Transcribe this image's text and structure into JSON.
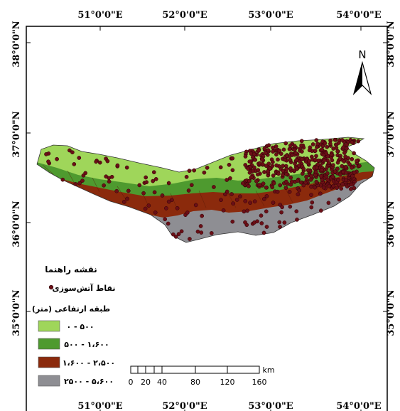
{
  "map": {
    "top_ticks": [
      "51°0'0\"E",
      "52°0'0\"E",
      "53°0'0\"E",
      "54°0'0\"E"
    ],
    "bottom_ticks": [
      "51°0'0\"E",
      "52°0'0\"E",
      "53°0'0\"E",
      "54°0'0\"E"
    ],
    "left_ticks": [
      "38°0'0\"N",
      "37°0'0\"N",
      "36°0'0\"N",
      "35°0'0\"N"
    ],
    "right_ticks": [
      "38°0'0\"N",
      "37°0'0\"N",
      "36°0'0\"N",
      "35°0'0\"N"
    ],
    "north_label": "N"
  },
  "legend": {
    "title": "نقشه راهنما",
    "fire_points_label": "نقاط آتش‌سوزی",
    "elevation_title": "طبقه ارتفاعی (متر)",
    "classes": [
      {
        "label": "۰ - ۵۰۰",
        "color": "#9fd65a"
      },
      {
        "label": "۵۰۰ - ۱،۶۰۰",
        "color": "#4e9a2f"
      },
      {
        "label": "۱،۶۰۰ - ۲،۵۰۰",
        "color": "#8b2a0c"
      },
      {
        "label": "۲۵۰۰ - ۵،۶۰۰",
        "color": "#8e8e93"
      }
    ],
    "point_color": "#6b0f16"
  },
  "scalebar": {
    "labels": [
      "0",
      "20",
      "40",
      "80",
      "120",
      "160"
    ],
    "unit": "km"
  }
}
